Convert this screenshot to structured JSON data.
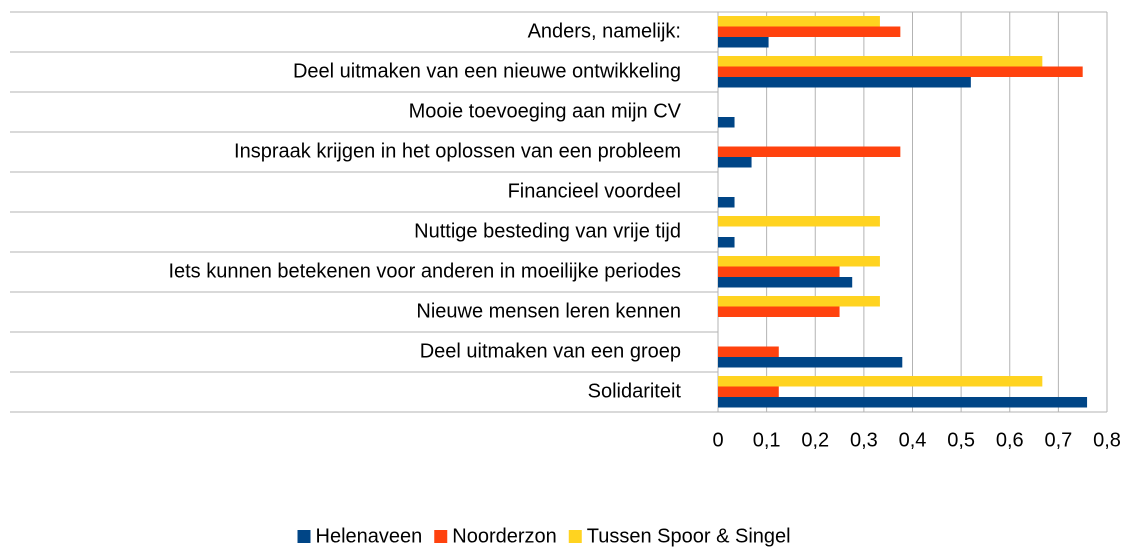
{
  "chart_data": {
    "type": "hbar",
    "categories": [
      "Anders, namelijk:",
      "Deel uitmaken van een nieuwe ontwikkeling",
      "Mooie toevoeging aan mijn CV",
      "Inspraak krijgen in het oplossen van een probleem",
      "Financieel voordeel",
      "Nuttige besteding van vrije tijd",
      "Iets kunnen betekenen voor anderen in moeilijke periodes",
      "Nieuwe mensen leren kennen",
      "Deel uitmaken van een groep",
      "Solidariteit"
    ],
    "series": [
      {
        "name": "Helenaveen",
        "color": "#004586",
        "values": [
          0.104,
          0.52,
          0.034,
          0.069,
          0.034,
          0.034,
          0.276,
          0,
          0.379,
          0.759
        ]
      },
      {
        "name": "Noorderzon",
        "color": "#ff420e",
        "values": [
          0.375,
          0.75,
          0,
          0.375,
          0,
          0,
          0.25,
          0.25,
          0.125,
          0.125
        ]
      },
      {
        "name": "Tussen Spoor & Singel",
        "color": "#ffd320",
        "values": [
          0.333,
          0.667,
          0,
          0,
          0,
          0.333,
          0.333,
          0.333,
          0,
          0.667
        ]
      }
    ],
    "xlim": [
      0,
      0.8
    ],
    "xticks": [
      0,
      {
        "value": 0.1,
        "label": "0,1"
      },
      {
        "value": 0.2,
        "label": "0,2"
      },
      {
        "value": 0.3,
        "label": "0,3"
      },
      {
        "value": 0.4,
        "label": "0,4"
      },
      {
        "value": 0.5,
        "label": "0,5"
      },
      {
        "value": 0.6,
        "label": "0,6"
      },
      {
        "value": 0.7,
        "label": "0,7"
      },
      {
        "value": 0.8,
        "label": "0,8"
      }
    ],
    "grid": true,
    "legend": "bottom"
  }
}
